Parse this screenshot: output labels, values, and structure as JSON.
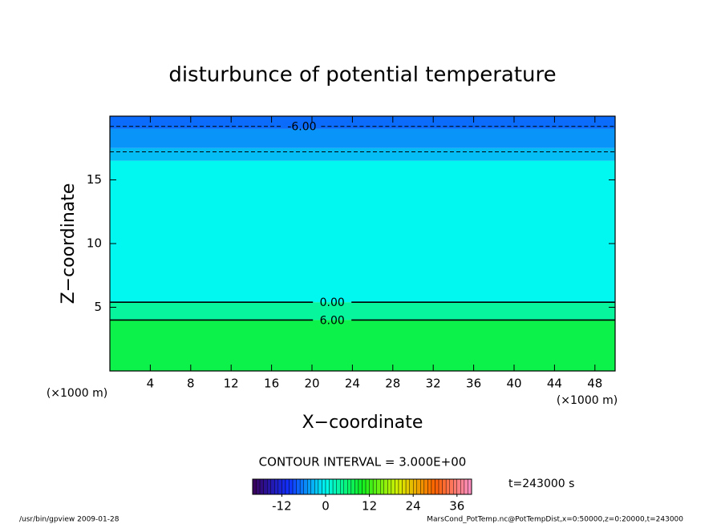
{
  "chart_data": {
    "type": "contour",
    "title": "disturbunce of potential temperature",
    "xlabel": "X−coordinate",
    "ylabel": "Z−coordinate",
    "x_unit": "(×1000 m)",
    "xlim": [
      0,
      50
    ],
    "ylim": [
      0,
      20
    ],
    "xticks": [
      4,
      8,
      12,
      16,
      20,
      24,
      28,
      32,
      36,
      40,
      44,
      48
    ],
    "yticks": [
      5,
      10,
      15
    ],
    "z_edges": [
      0,
      4,
      5.4,
      16.5,
      17.5,
      19,
      20
    ],
    "values": [
      8,
      4,
      0,
      -3,
      -5,
      -7
    ],
    "contour_levels": [
      {
        "value": -6,
        "label": "-6.00"
      },
      -3,
      {
        "value": 0,
        "label": "0.00"
      },
      {
        "value": 6,
        "label": "6.00"
      }
    ],
    "contour_z": [
      19.2,
      17.2,
      5.4,
      4.0
    ],
    "contour_interval_label": "CONTOUR INTERVAL = 3.000E+00",
    "time_label": "t=243000 s",
    "clim": [
      -20,
      40
    ],
    "cticks": [
      -12,
      0,
      12,
      24,
      36
    ],
    "colormap": [
      "#3a0058",
      "#1030ff",
      "#00f8f0",
      "#10f020",
      "#d8f000",
      "#ff6000",
      "#ff90c8"
    ],
    "footer_left": "/usr/bin/gpview   2009-01-28",
    "footer_right": "MarsCond_PotTemp.nc@PotTempDist,x=0:50000,z=0:20000,t=243000"
  }
}
